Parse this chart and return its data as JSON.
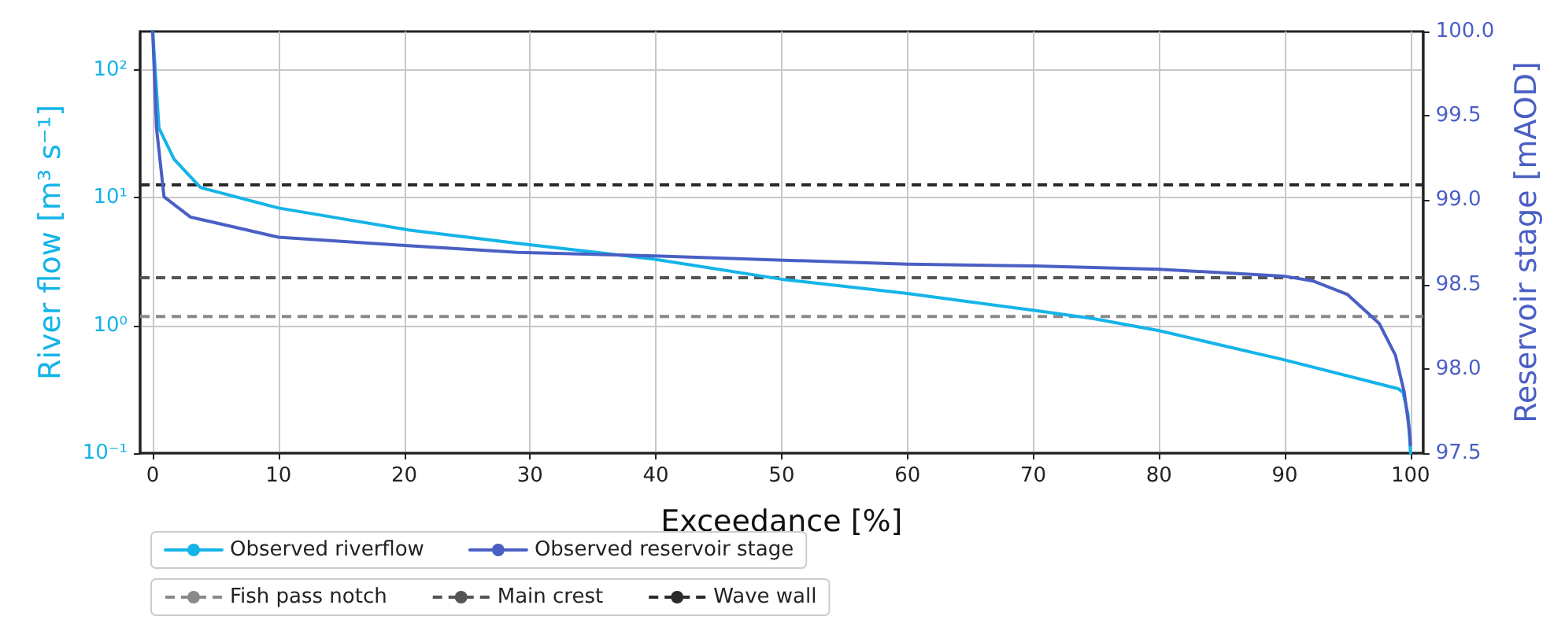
{
  "chart_data": {
    "type": "line",
    "xlabel": "Exceedance [%]",
    "ylabel": "River flow [m³ s⁻¹]",
    "y2label": "Reservoir stage [mAOD]",
    "xlim": [
      -1,
      101
    ],
    "xticks": [
      0,
      10,
      20,
      30,
      40,
      50,
      60,
      70,
      80,
      90,
      100
    ],
    "ylim": [
      0.1,
      200
    ],
    "yticks": [
      {
        "value": 0.1,
        "label": "10⁻¹"
      },
      {
        "value": 1,
        "label": "10⁰"
      },
      {
        "value": 10,
        "label": "10¹"
      },
      {
        "value": 100,
        "label": "10²"
      }
    ],
    "y2lim": [
      97.5,
      100.0
    ],
    "y2ticks": [
      {
        "value": 97.5,
        "label": "97.5"
      },
      {
        "value": 98,
        "label": "98.0"
      },
      {
        "value": 98.5,
        "label": "98.5"
      },
      {
        "value": 99,
        "label": "99.0"
      },
      {
        "value": 99.5,
        "label": "99.5"
      },
      {
        "value": 100,
        "label": "100.0"
      }
    ],
    "log": "y",
    "grid": true,
    "legend": "bottom",
    "line_style": "solid",
    "marker": "none",
    "series": [
      {
        "name": "Observed riverflow",
        "color": "#14b4e8",
        "x": [
          0,
          0.5,
          1.7,
          3.8,
          10,
          20.3,
          29,
          39.9,
          50,
          60,
          70.1,
          74.8,
          80,
          89.9,
          99,
          99.4,
          99.8,
          100
        ],
        "values": [
          200,
          35,
          20,
          12,
          8.3,
          5.6,
          4.4,
          3.3,
          2.3,
          1.78,
          1.31,
          1.13,
          0.91,
          0.54,
          0.32,
          0.3,
          0.2,
          0.1
        ]
      },
      {
        "name": "Observed reservoir stage",
        "color": "#4a5fc4",
        "axis": "y2",
        "x": [
          0,
          0.3,
          0.9,
          3,
          10,
          20.3,
          29,
          39.9,
          60,
          70.1,
          80,
          89.9,
          92.3,
          95,
          97.5,
          98.8,
          99.5,
          99.9,
          100
        ],
        "values": [
          100.0,
          99.43,
          99.02,
          98.9,
          98.78,
          98.73,
          98.69,
          98.67,
          98.62,
          98.61,
          98.59,
          98.55,
          98.52,
          98.44,
          98.27,
          98.08,
          97.86,
          97.64,
          97.55
        ]
      }
    ],
    "ref_lines": [
      {
        "axis": "y2",
        "value": 98.31,
        "label": "Fish pass notch",
        "color": "#8a8a8a",
        "line_style": "dashed"
      },
      {
        "axis": "y2",
        "value": 98.54,
        "label": "Main crest",
        "color": "#555555",
        "line_style": "dashed"
      },
      {
        "axis": "y2",
        "value": 99.09,
        "label": "Wave wall",
        "color": "#2a2a2a",
        "line_style": "dashed"
      }
    ]
  }
}
